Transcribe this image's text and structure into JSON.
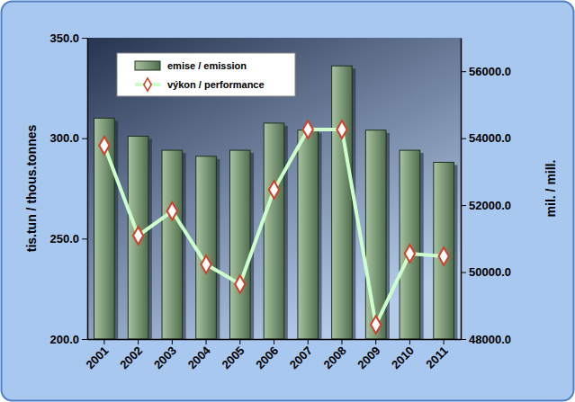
{
  "chart_data": {
    "type": "bar",
    "categories": [
      "2001",
      "2002",
      "2003",
      "2004",
      "2005",
      "2006",
      "2007",
      "2008",
      "2009",
      "2010",
      "2011"
    ],
    "series": [
      {
        "name": "emise / emission",
        "type": "bar",
        "axis": "y",
        "color": "#4f6e4f",
        "values": [
          310,
          301,
          294,
          291,
          294,
          307.5,
          304,
          336,
          304,
          294,
          288
        ]
      },
      {
        "name": "výkon / performance",
        "type": "line",
        "axis": "y2",
        "color": "#ccffcc",
        "marker": "diamond",
        "line_style": "solid",
        "values": [
          53780,
          51090,
          51820,
          50230,
          49640,
          52460,
          54260,
          54260,
          48430,
          50550,
          50470
        ]
      }
    ],
    "y_label": "tis.tun / thous.tonnes",
    "y2_label": "mil. / mill.",
    "ylim": [
      200,
      350
    ],
    "yticks": [
      {
        "value": 200,
        "label": "200.0"
      },
      {
        "value": 250,
        "label": "250.0"
      },
      {
        "value": 300,
        "label": "300.0"
      },
      {
        "value": 350,
        "label": "350.0"
      }
    ],
    "y2lim": [
      48000,
      57000
    ],
    "y2ticks": [
      {
        "value": 48000,
        "label": "48000.0"
      },
      {
        "value": 50000,
        "label": "50000.0"
      },
      {
        "value": 52000,
        "label": "52000.0"
      },
      {
        "value": 54000,
        "label": "54000.0"
      },
      {
        "value": 56000,
        "label": "56000.0"
      }
    ],
    "legend": "top-left",
    "grid": false
  }
}
